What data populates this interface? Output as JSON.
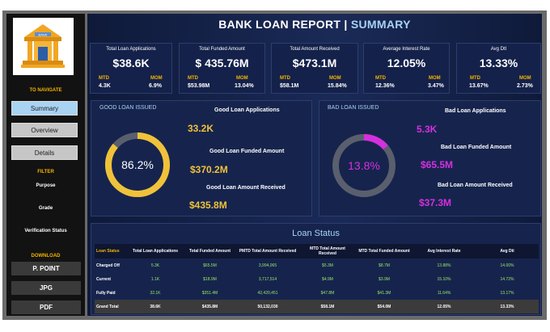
{
  "header": {
    "title": "BANK LOAN REPORT |",
    "subtitle": "SUMMARY"
  },
  "logo": {
    "label": "BANK"
  },
  "sidebar": {
    "nav_heading": "TO NAVIGATE",
    "nav": [
      "Summary",
      "Overview",
      "Details"
    ],
    "active_nav": "Summary",
    "filter_heading": "FILTER",
    "filters": [
      "Purpose",
      "Grade",
      "Verification Status"
    ],
    "download_heading": "DOWNLOAD",
    "downloads": [
      "P. POINT",
      "JPG",
      "PDF"
    ]
  },
  "kpis": [
    {
      "title": "Total Loan Applications",
      "value": "$38.6K",
      "mtd_label": "MTD",
      "mom_label": "MOM",
      "mtd": "4.3K",
      "mom": "6.9%"
    },
    {
      "title": "Total Funded Amount",
      "value": "$ 435.76M",
      "mtd_label": "MTD",
      "mom_label": "MOM",
      "mtd": "$53.98M",
      "mom": "13.04%"
    },
    {
      "title": "Total Amount Received",
      "value": "$473.1M",
      "mtd_label": "MTD",
      "mom_label": "MOM",
      "mtd": "$58.1M",
      "mom": "15.84%"
    },
    {
      "title": "Average Interest Rate",
      "value": "12.05%",
      "mtd_label": "MTD",
      "mom_label": "MOM",
      "mtd": "12.36%",
      "mom": "3.47%"
    },
    {
      "title": "Avg DtI",
      "value": "13.33%",
      "mtd_label": "MTD",
      "mom_label": "MOM",
      "mtd": "13.67%",
      "mom": "2.73%"
    }
  ],
  "good": {
    "title": "GOOD LOAN ISSUED",
    "percent": "86.2%",
    "percent_value": 86.2,
    "ring_color": "#f0c23a",
    "apps_label": "Good Loan Applications",
    "apps": "33.2K",
    "funded_label": "Good Loan Funded Amount",
    "funded": "$370.2M",
    "received_label": "Good Loan Amount Received",
    "received": "$435.8M"
  },
  "bad": {
    "title": "BAD LOAN ISSUED",
    "percent": "13.8%",
    "percent_value": 13.8,
    "ring_color": "#d62fe0",
    "apps_label": "Bad Loan Applications",
    "apps": "5.3K",
    "funded_label": "Bad Loan Funded Amount",
    "funded": "$65.5M",
    "received_label": "Bad Loan Amount Received",
    "received": "$37.3M"
  },
  "loan_status": {
    "title": "Loan Status",
    "columns": [
      "Loan Status",
      "Total Loan Applications",
      "Total Funded Amount",
      "PMTD Total Amount Received",
      "MTD Total Amount Received",
      "MTD Total Funded Amount",
      "Avg Interest Rate",
      "Avg Dti"
    ],
    "rows": [
      [
        "Charged Off",
        "5.3K",
        "$65.5M",
        "3,994,065",
        "$5.3M",
        "$8.7M",
        "13.88%",
        "14.00%"
      ],
      [
        "Current",
        "1.1K",
        "$18.9M",
        "3,717,514",
        "$4.9M",
        "$3.9M",
        "15.10%",
        "14.72%"
      ],
      [
        "Fully Paid",
        "32.1K",
        "$351.4M",
        "42,420,451",
        "$47.8M",
        "$41.3M",
        "11.64%",
        "13.17%"
      ]
    ],
    "total": [
      "Grand Total",
      "38.6K",
      "$435.8M",
      "50,132,030",
      "$58.1M",
      "$54.0M",
      "12.05%",
      "13.33%"
    ]
  },
  "colors": {
    "accent_yellow": "#f4b400",
    "good": "#f0c23a",
    "bad": "#d62fe0",
    "table_value": "#9be86a",
    "nav_active": "#a9d3f2"
  }
}
